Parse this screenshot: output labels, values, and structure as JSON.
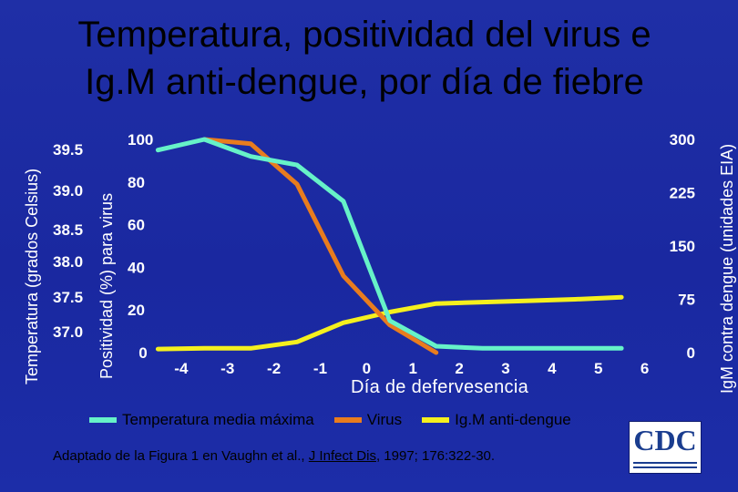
{
  "title_line1": "Temperatura, positividad del virus e",
  "title_line2": "Ig.M anti-dengue, por día de fiebre",
  "source": {
    "prefix": "Adaptado de la Figura 1 en Vaughn et  al., ",
    "journal": "J Infect Dis",
    "suffix": ", 1997; 176:322-30."
  },
  "logo": {
    "text": "CDC"
  },
  "colors": {
    "temperatura": "#66f2c8",
    "virus": "#e87c1e",
    "igm": "#f5f01e",
    "axis_text": "#ffffff"
  },
  "chart_data": {
    "type": "line",
    "xlabel": "Día de defervesencia",
    "x_ticks": [
      "-4",
      "-3",
      "-2",
      "-1",
      "0",
      "1",
      "2",
      "3",
      "4",
      "5",
      "6"
    ],
    "axes": {
      "temperature": {
        "label": "Temperatura (grados Celsius)",
        "ticks": [
          "39.5",
          "39.0",
          "38.5",
          "38.0",
          "37.5",
          "37.0"
        ],
        "range": [
          37.0,
          39.5
        ]
      },
      "virus": {
        "label": "Positividad (%) para virus",
        "ticks": [
          "100",
          "80",
          "60",
          "40",
          "20",
          "0"
        ],
        "range": [
          0,
          100
        ]
      },
      "igm": {
        "label": "IgM contra dengue (unidades EIA)",
        "ticks": [
          "300",
          "225",
          "150",
          "75",
          "0"
        ],
        "range": [
          0,
          300
        ]
      }
    },
    "legend": [
      "Temperatura media máxima",
      "Virus",
      "Ig.M anti-dengue"
    ],
    "legend_position": "bottom",
    "series": [
      {
        "name": "Temperatura media máxima",
        "axis": "virus",
        "x": [
          -4.5,
          -3.5,
          -2.5,
          -1.5,
          -0.5,
          0.5,
          1.5,
          2.5,
          3.5,
          4.5,
          5.5
        ],
        "values": [
          95,
          100,
          92,
          88,
          71,
          15,
          3,
          2,
          2,
          2,
          2
        ]
      },
      {
        "name": "Virus",
        "axis": "virus",
        "x": [
          -3.5,
          -2.5,
          -1.5,
          -0.5,
          0.5,
          1.5
        ],
        "values": [
          100,
          98,
          79,
          36,
          13,
          0
        ]
      },
      {
        "name": "Ig.M anti-dengue",
        "axis": "igm",
        "x": [
          -4.5,
          -3.5,
          -2.5,
          -1.5,
          -0.5,
          0.5,
          1.5,
          2.5,
          3.5,
          4.5,
          5.5
        ],
        "values": [
          5,
          6,
          6,
          15,
          42,
          57,
          69,
          71,
          73,
          75,
          78
        ]
      }
    ]
  }
}
